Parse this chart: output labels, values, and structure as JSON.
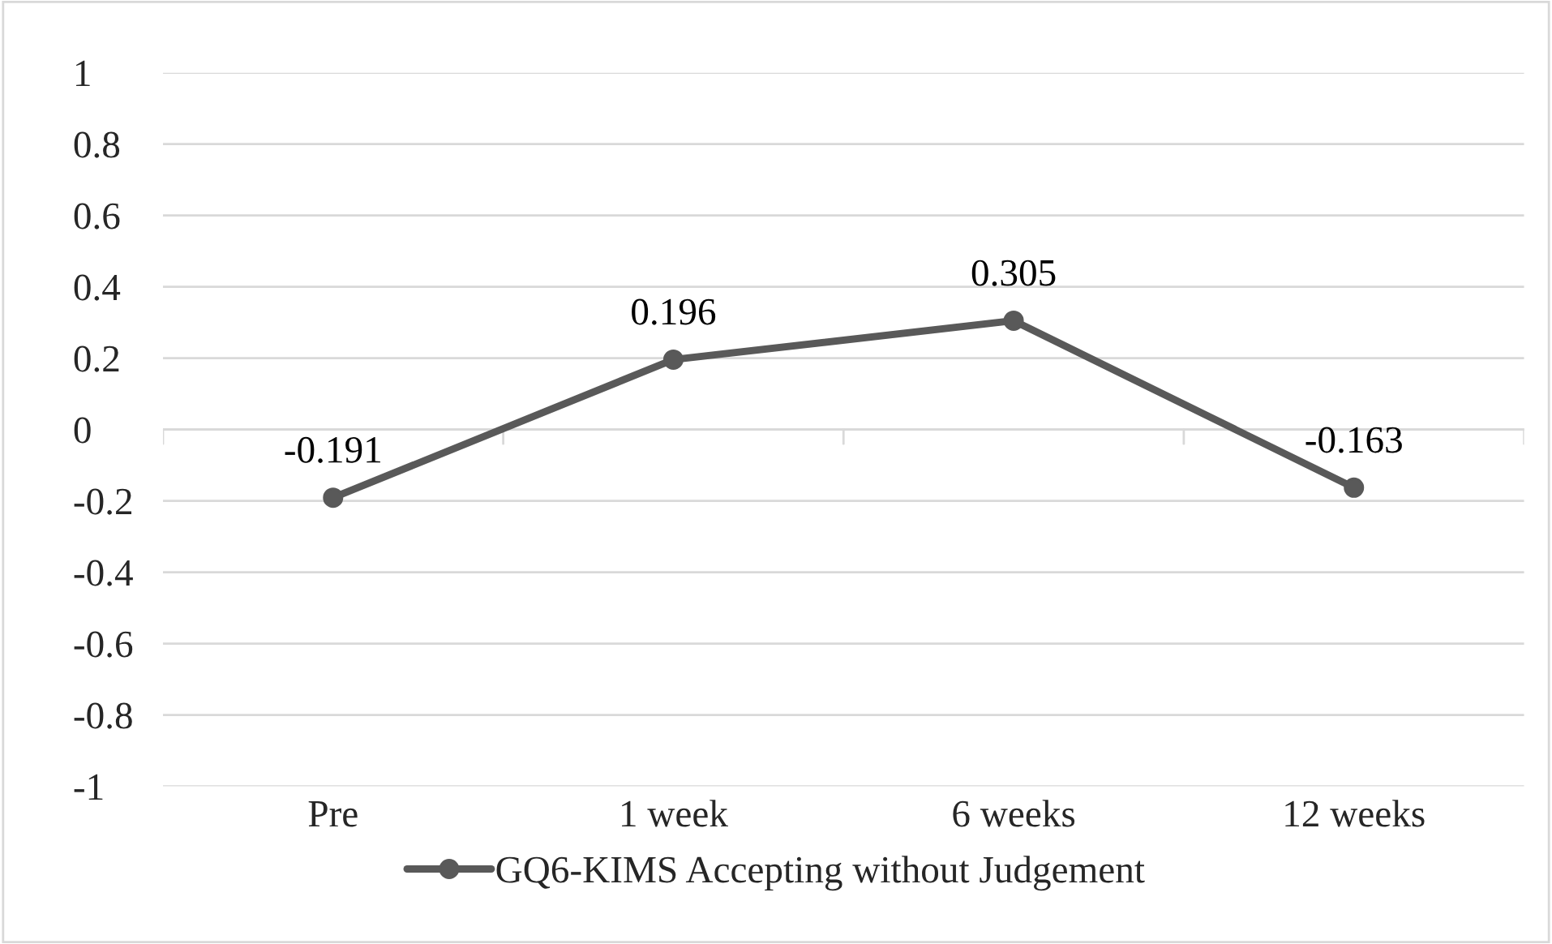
{
  "chart_data": {
    "type": "line",
    "categories": [
      "Pre",
      "1 week",
      "6 weeks",
      "12 weeks"
    ],
    "series": [
      {
        "name": "GQ6-KIMS Accepting without Judgement",
        "color": "#595959",
        "values": [
          -0.191,
          0.196,
          0.305,
          -0.163
        ]
      }
    ],
    "ylim": [
      -1,
      1
    ],
    "yticks": [
      -1,
      -0.8,
      -0.6,
      -0.4,
      -0.2,
      0,
      0.2,
      0.4,
      0.6,
      0.8,
      1
    ],
    "grid": "y",
    "legend": "bottom",
    "marker": "circle",
    "line_style": "solid",
    "data_labels": true
  }
}
